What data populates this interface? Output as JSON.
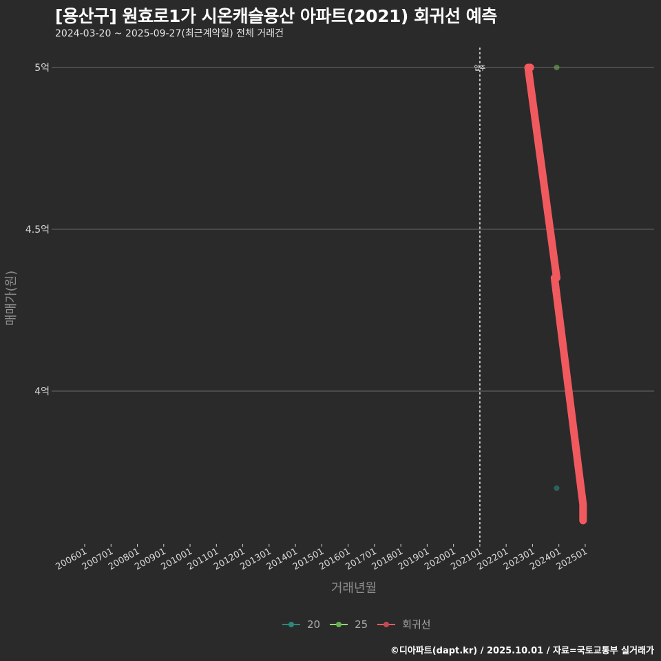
{
  "header": {
    "title": "[용산구] 원효로1가 시온캐슬용산 아파트(2021) 회귀선 예측",
    "subtitle": "2024-03-20 ~ 2025-09-27(최근계약일) 전체 거래건"
  },
  "footer": {
    "credit": "©디아파트(dapt.kr) / 2025.10.01 / 자료=국토교통부 실거래가"
  },
  "colors": {
    "background": "#2b2a2b",
    "regression": "#f05a5e",
    "s20": "#2a8a7a",
    "s25": "#8fdc6e",
    "grid": "#6a6a6a"
  },
  "chart_data": {
    "type": "line",
    "title": "[용산구] 원효로1가 시온캐슬용산 아파트(2021) 회귀선 예측",
    "subtitle": "2024-03-20 ~ 2025-09-27(최근계약일) 전체 거래건",
    "xlabel": "거래년월",
    "ylabel": "매매가(원)",
    "x_ticks": [
      "200601",
      "200701",
      "200801",
      "200901",
      "201001",
      "201101",
      "201201",
      "201301",
      "201401",
      "201501",
      "201601",
      "201701",
      "201801",
      "201901",
      "202001",
      "202101",
      "202201",
      "202301",
      "202401",
      "202501"
    ],
    "y_ticks": [
      {
        "value": 4.0,
        "label": "4억"
      },
      {
        "value": 4.5,
        "label": "4.5억"
      },
      {
        "value": 5.0,
        "label": "5억"
      }
    ],
    "ylim": [
      3.55,
      5.07
    ],
    "grid": true,
    "legend_position": "bottom",
    "annotations": [
      {
        "x": "202101",
        "label": "입주",
        "style": "vertical dotted line"
      }
    ],
    "series": [
      {
        "name": "20",
        "type": "scatter",
        "points": [
          {
            "x": "2024-08",
            "y": 3.7
          }
        ]
      },
      {
        "name": "25",
        "type": "scatter",
        "points": [
          {
            "x": "2024-03",
            "y": 5.0
          }
        ]
      },
      {
        "name": "회귀선",
        "type": "step-line",
        "points": [
          {
            "x": "2023-07",
            "y": 5.0
          },
          {
            "x": "2023-12",
            "y": 5.0
          },
          {
            "x": "2024-01",
            "y": 4.35
          },
          {
            "x": "2024-11",
            "y": 4.35
          },
          {
            "x": "2025-01",
            "y": 3.65
          },
          {
            "x": "2025-04",
            "y": 3.65
          },
          {
            "x": "2025-05",
            "y": 3.6
          },
          {
            "x": "2025-08",
            "y": 3.6
          }
        ]
      }
    ]
  },
  "legend": {
    "items": [
      {
        "label": "20",
        "color": "#2a8a7a"
      },
      {
        "label": "25",
        "color": "#8fdc6e"
      },
      {
        "label": "회귀선",
        "color": "#f05a5e"
      }
    ]
  }
}
